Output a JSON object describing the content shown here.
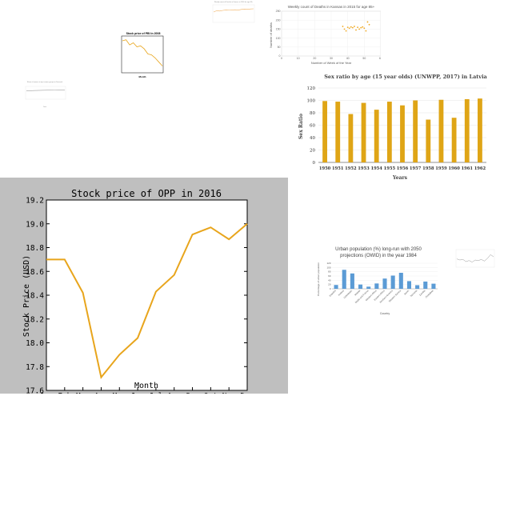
{
  "charts": {
    "opp": {
      "type": "line",
      "title": "Stock price of OPP in 2016",
      "xlabel": "Month",
      "ylabel": "Stock Price (USD)",
      "categories": [
        "Jan",
        "Feb",
        "Mar",
        "Apr",
        "May",
        "Jun",
        "Jul",
        "Aug",
        "Sep",
        "Oct",
        "Nov",
        "Dec"
      ],
      "values": [
        18.7,
        18.7,
        18.42,
        17.71,
        17.9,
        18.04,
        18.43,
        18.57,
        18.91,
        18.97,
        18.87,
        19.0
      ],
      "ylim": [
        17.6,
        19.2
      ],
      "yticks": [
        "17.6",
        "17.8",
        "18.0",
        "18.2",
        "18.4",
        "18.6",
        "18.8",
        "19.0",
        "19.2"
      ],
      "color": "#e8a51c",
      "background": "#bfbfbf"
    },
    "latvia": {
      "type": "bar",
      "title": "Sex ratio by age (15 year olds) (UNWPP, 2017) in Latvia",
      "xlabel": "Years",
      "ylabel": "Sex Ratio",
      "categories": [
        "1950",
        "1951",
        "1952",
        "1953",
        "1954",
        "1955",
        "1956",
        "1957",
        "1958",
        "1959",
        "1960",
        "1961",
        "1962"
      ],
      "values": [
        99,
        98,
        78,
        96,
        85,
        98,
        92,
        100,
        69,
        101,
        72,
        102,
        103
      ],
      "ylim": [
        0,
        120
      ],
      "yticks": [
        "0",
        "20",
        "40",
        "60",
        "80",
        "100",
        "120"
      ],
      "color": "#dfa516"
    },
    "kansas": {
      "type": "scatter",
      "title": "Weekly count of Deaths in Kansas in 2015 for age 85+",
      "xlabel": "Number of Week of the Year",
      "ylabel": "Number of deaths",
      "xlim": [
        0,
        60
      ],
      "ylim": [
        0,
        250
      ],
      "xticks": [
        "0",
        "10",
        "20",
        "30",
        "40",
        "50",
        "60"
      ],
      "yticks": [
        "0",
        "50",
        "100",
        "150",
        "200",
        "250"
      ],
      "x": [
        37,
        38,
        39,
        40,
        41,
        42,
        43,
        44,
        45,
        46,
        47,
        48,
        49,
        50,
        51,
        52,
        53
      ],
      "y": [
        165,
        150,
        140,
        160,
        155,
        162,
        158,
        165,
        145,
        160,
        150,
        158,
        162,
        155,
        140,
        190,
        175
      ],
      "color": "#f0a820"
    },
    "urban": {
      "type": "bar",
      "title": "Urban population (%) long-run with 2050 projections (OWID) in the year 1984",
      "xlabel": "Country",
      "ylabel": "Percentage of urban population",
      "categories": [
        "Eswatini",
        "Iceland",
        "Uzbekistan",
        "Malawi",
        "Wallis and Futuna",
        "Western Africa",
        "Eastern Africa",
        "Northern America",
        "Western Sahara",
        "Benin",
        "Tanzania",
        "Zambia",
        "Zimbabwe"
      ],
      "values": [
        18,
        89,
        72,
        20,
        10,
        25,
        48,
        62,
        75,
        36,
        17,
        34,
        24
      ],
      "ylim": [
        0,
        120
      ],
      "yticks": [
        "0",
        "20",
        "40",
        "60",
        "80",
        "100",
        "120"
      ],
      "color": "#5b9bd5"
    },
    "small_stock": {
      "type": "line",
      "title": "Stock price of PBI in 2008",
      "xlabel": "Month",
      "values": [
        41,
        42,
        37,
        39,
        35,
        36,
        33,
        28,
        27,
        24,
        20,
        16
      ],
      "ylim": [
        10,
        45
      ],
      "color": "#e8a51c"
    },
    "small_women": {
      "type": "line",
      "title": "Share of women in top income groups in Denmark",
      "xlabel": "Year",
      "values": [
        20,
        20.5,
        21,
        21.2,
        21.5,
        21.8,
        22,
        22.2,
        22.5,
        22.6,
        22.4,
        22.8
      ],
      "ylim": [
        0,
        30
      ],
      "color": "#a0a0a0"
    },
    "small_top": {
      "type": "line",
      "title": "Weekly count of Deaths in Kansas in 2016 for age 85+",
      "values": [
        150,
        170,
        165,
        175,
        180,
        178,
        182,
        185,
        180,
        190,
        195,
        192,
        198,
        200
      ],
      "ylim": [
        0,
        250
      ],
      "color": "#f0b060"
    },
    "small_right": {
      "type": "line",
      "values": [
        14,
        12,
        13,
        9,
        11,
        8,
        12,
        11,
        13,
        10,
        15,
        22,
        18
      ],
      "ylim": [
        0,
        30
      ],
      "color": "#999999"
    }
  }
}
